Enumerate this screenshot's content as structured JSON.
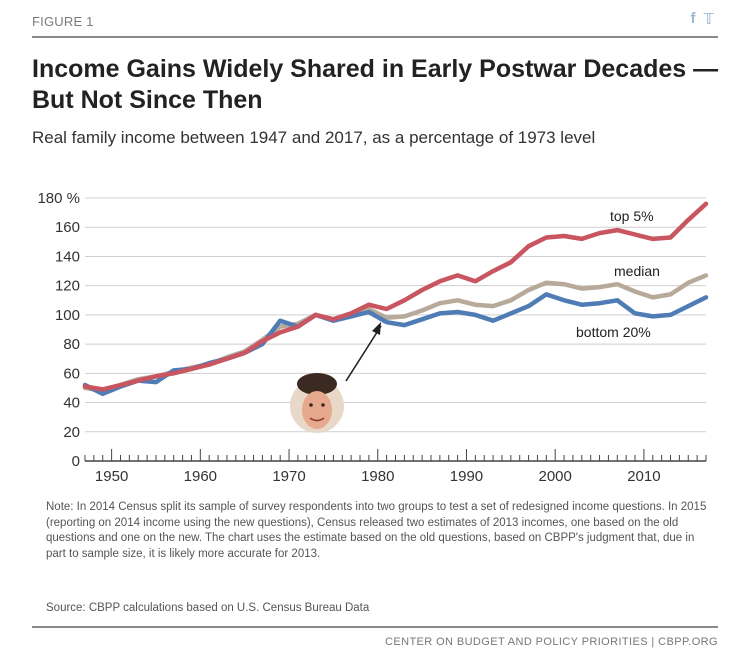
{
  "header": {
    "figure_label": "FIGURE 1",
    "social_icons": [
      "facebook-icon",
      "twitter-icon"
    ],
    "title": "Income Gains Widely Shared in Early Postwar Decades — But Not Since Then",
    "subtitle": "Real family income between 1947 and 2017, as a percentage of 1973 level"
  },
  "chart_data": {
    "type": "line",
    "xlim": [
      1947,
      2017
    ],
    "ylim": [
      0,
      180
    ],
    "x_ticks": [
      1950,
      1960,
      1970,
      1980,
      1990,
      2000,
      2010
    ],
    "y_ticks": [
      0,
      20,
      40,
      60,
      80,
      100,
      120,
      140,
      160,
      180
    ],
    "y_tick_labels": [
      "0",
      "20",
      "40",
      "60",
      "80",
      "100",
      "120",
      "140",
      "160",
      "180 %"
    ],
    "grid": true,
    "colors": {
      "top5": "#c8555f",
      "median": "#b8aa9a",
      "bottom20": "#4f7cb4"
    },
    "annotation": "portrait with arrow pointing at 1980",
    "series": [
      {
        "name": "top 5%",
        "x": [
          1947,
          1949,
          1951,
          1953,
          1955,
          1957,
          1959,
          1961,
          1963,
          1965,
          1967,
          1969,
          1971,
          1973,
          1975,
          1977,
          1979,
          1981,
          1983,
          1985,
          1987,
          1989,
          1991,
          1993,
          1995,
          1997,
          1999,
          2001,
          2003,
          2005,
          2007,
          2009,
          2011,
          2013,
          2015,
          2017
        ],
        "values": [
          51,
          49,
          52,
          55,
          58,
          60,
          63,
          66,
          70,
          74,
          82,
          88,
          92,
          100,
          97,
          101,
          107,
          104,
          110,
          117,
          123,
          127,
          123,
          130,
          136,
          147,
          153,
          154,
          152,
          156,
          158,
          155,
          152,
          153,
          165,
          176
        ]
      },
      {
        "name": "median",
        "x": [
          1947,
          1949,
          1951,
          1953,
          1955,
          1957,
          1959,
          1961,
          1963,
          1965,
          1967,
          1969,
          1971,
          1973,
          1975,
          1977,
          1979,
          1981,
          1983,
          1985,
          1987,
          1989,
          1991,
          1993,
          1995,
          1997,
          1999,
          2001,
          2003,
          2005,
          2007,
          2009,
          2011,
          2013,
          2015,
          2017
        ],
        "values": [
          50,
          48,
          52,
          56,
          58,
          61,
          64,
          66,
          71,
          75,
          83,
          92,
          94,
          100,
          97,
          101,
          104,
          98,
          99,
          103,
          108,
          110,
          107,
          106,
          110,
          117,
          122,
          121,
          118,
          119,
          121,
          116,
          112,
          114,
          122,
          127
        ]
      },
      {
        "name": "bottom 20%",
        "x": [
          1947,
          1949,
          1951,
          1953,
          1955,
          1957,
          1959,
          1961,
          1963,
          1965,
          1967,
          1969,
          1971,
          1973,
          1975,
          1977,
          1979,
          1981,
          1983,
          1985,
          1987,
          1989,
          1991,
          1993,
          1995,
          1997,
          1999,
          2001,
          2003,
          2005,
          2007,
          2009,
          2011,
          2013,
          2015,
          2017
        ],
        "values": [
          52,
          46,
          51,
          55,
          54,
          62,
          63,
          67,
          70,
          74,
          80,
          96,
          92,
          100,
          96,
          99,
          102,
          95,
          93,
          97,
          101,
          102,
          100,
          96,
          101,
          106,
          114,
          110,
          107,
          108,
          110,
          101,
          99,
          100,
          106,
          112
        ]
      }
    ]
  },
  "note": "Note: In 2014 Census split its sample of survey respondents into two groups to test a set of redesigned income questions. In 2015 (reporting on 2014 income using the new questions), Census released two estimates of 2013 incomes, one based on the old questions and one on the new. The chart uses the estimate based on the old questions, based on CBPP's judgment that, due in part to sample size, it is likely more accurate for 2013.",
  "source": "Source: CBPP calculations based on U.S. Census Bureau Data",
  "footer": "CENTER ON BUDGET AND POLICY PRIORITIES | CBPP.ORG"
}
